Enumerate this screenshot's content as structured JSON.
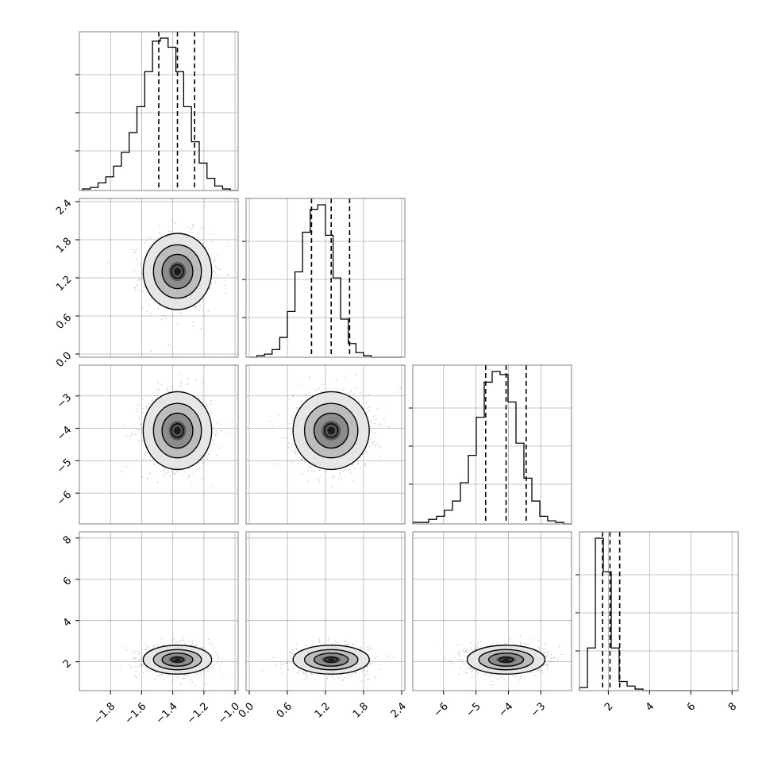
{
  "chart_data": {
    "type": "corner",
    "parameters": 4,
    "colors": {
      "frame": "#7f7f7f",
      "grid": "#b0b0b0",
      "hist": "#000000",
      "points": "#9e9e9e",
      "contour": "#000000"
    },
    "grid": true,
    "axes_ranges": [
      [
        -2.0,
        -0.98
      ],
      [
        -0.05,
        2.45
      ],
      [
        -6.95,
        -2.05
      ],
      [
        0.6,
        8.3
      ]
    ],
    "tick_labels": [
      [
        "−1.8",
        "−1.6",
        "−1.4",
        "−1.2",
        "−1.0"
      ],
      [
        "0.0",
        "0.6",
        "1.2",
        "1.8",
        "2.4"
      ],
      [
        "−6",
        "−5",
        "−4",
        "−3"
      ],
      [
        "2",
        "4",
        "6",
        "8"
      ]
    ],
    "tick_values": [
      [
        -1.8,
        -1.6,
        -1.4,
        -1.2,
        -1.0
      ],
      [
        0.0,
        0.6,
        1.2,
        1.8,
        2.4
      ],
      [
        -6,
        -5,
        -4,
        -3
      ],
      [
        2,
        4,
        6,
        8
      ]
    ],
    "histograms": [
      {
        "param": 0,
        "bin_start": -1.98,
        "bin_width": 0.05,
        "counts": [
          0.01,
          0.02,
          0.05,
          0.09,
          0.16,
          0.25,
          0.38,
          0.55,
          0.78,
          0.98,
          1.0,
          0.94,
          0.78,
          0.55,
          0.32,
          0.18,
          0.08,
          0.03,
          0.01,
          0.0
        ],
        "quantiles": [
          -1.49,
          -1.37,
          -1.26
        ]
      },
      {
        "param": 1,
        "bin_start": 0.0,
        "bin_width": 0.12,
        "counts": [
          0.0,
          0.01,
          0.02,
          0.05,
          0.13,
          0.3,
          0.56,
          0.82,
          0.97,
          1.0,
          0.8,
          0.52,
          0.25,
          0.09,
          0.03,
          0.01,
          0.0,
          0.0,
          0.0,
          0.0
        ],
        "quantiles": [
          0.98,
          1.29,
          1.58
        ]
      },
      {
        "param": 2,
        "bin_start": -6.95,
        "bin_width": 0.245,
        "counts": [
          0.01,
          0.01,
          0.03,
          0.05,
          0.09,
          0.15,
          0.27,
          0.45,
          0.7,
          0.93,
          1.0,
          0.98,
          0.8,
          0.53,
          0.3,
          0.15,
          0.05,
          0.02,
          0.01,
          0.0
        ],
        "quantiles": [
          -4.7,
          -4.07,
          -3.45
        ]
      },
      {
        "param": 3,
        "bin_start": 0.6,
        "bin_width": 0.385,
        "counts": [
          0.02,
          0.28,
          1.0,
          0.78,
          0.28,
          0.06,
          0.03,
          0.01,
          0.0,
          0.0,
          0.0,
          0.0,
          0.0,
          0.0,
          0.0,
          0.0,
          0.0,
          0.0,
          0.0,
          0.0
        ],
        "quantiles": [
          1.72,
          2.08,
          2.55
        ]
      }
    ],
    "scatter_panels": [
      {
        "row": 1,
        "col": 0,
        "mean": [
          -1.37,
          1.3
        ],
        "sd": [
          0.11,
          0.3
        ]
      },
      {
        "row": 2,
        "col": 0,
        "mean": [
          -1.37,
          -4.07
        ],
        "sd": [
          0.11,
          0.6
        ]
      },
      {
        "row": 2,
        "col": 1,
        "mean": [
          1.29,
          -4.07
        ],
        "sd": [
          0.3,
          0.6
        ]
      },
      {
        "row": 3,
        "col": 0,
        "mean": [
          -1.37,
          2.1
        ],
        "sd": [
          0.11,
          0.35
        ]
      },
      {
        "row": 3,
        "col": 1,
        "mean": [
          1.29,
          2.1
        ],
        "sd": [
          0.3,
          0.35
        ]
      },
      {
        "row": 3,
        "col": 2,
        "mean": [
          -4.07,
          2.1
        ],
        "sd": [
          0.6,
          0.35
        ]
      }
    ]
  }
}
